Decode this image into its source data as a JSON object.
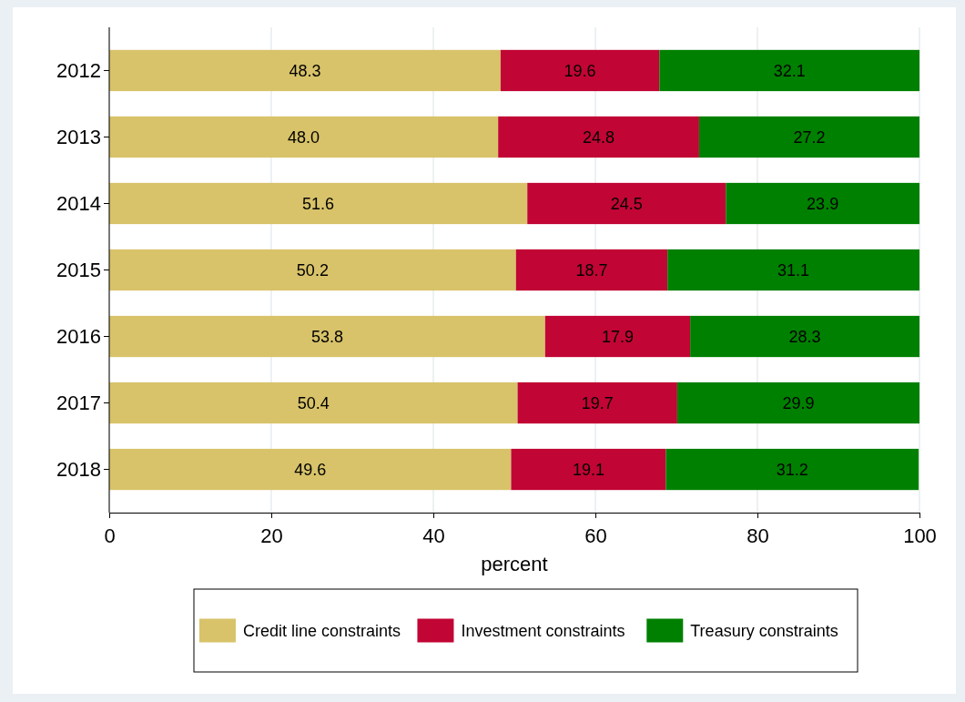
{
  "chart_data": {
    "type": "bar",
    "orientation": "horizontal",
    "stacked": true,
    "xlabel": "percent",
    "categories": [
      "2012",
      "2013",
      "2014",
      "2015",
      "2016",
      "2017",
      "2018"
    ],
    "series": [
      {
        "name": "Credit line constraints",
        "color": "#d8c36a",
        "values": [
          48.3,
          48.0,
          51.6,
          50.2,
          53.8,
          50.4,
          49.6
        ],
        "value_labels": [
          "48.3",
          "48.0",
          "51.6",
          "50.2",
          "53.8",
          "50.4",
          "49.6"
        ]
      },
      {
        "name": "Investment constraints",
        "color": "#c10534",
        "values": [
          19.6,
          24.8,
          24.5,
          18.7,
          17.9,
          19.7,
          19.1
        ],
        "value_labels": [
          "19.6",
          "24.8",
          "24.5",
          "18.7",
          "17.9",
          "19.7",
          "19.1"
        ]
      },
      {
        "name": "Treasury constraints",
        "color": "#008000",
        "values": [
          32.1,
          27.2,
          23.9,
          31.1,
          28.3,
          29.9,
          31.2
        ],
        "value_labels": [
          "32.1",
          "27.2",
          "23.9",
          "31.1",
          "28.3",
          "29.9",
          "31.2"
        ]
      }
    ],
    "xlim": [
      0,
      100
    ],
    "xticks": [
      0,
      20,
      40,
      60,
      80,
      100
    ],
    "grid": "x",
    "legend": "bottom"
  }
}
